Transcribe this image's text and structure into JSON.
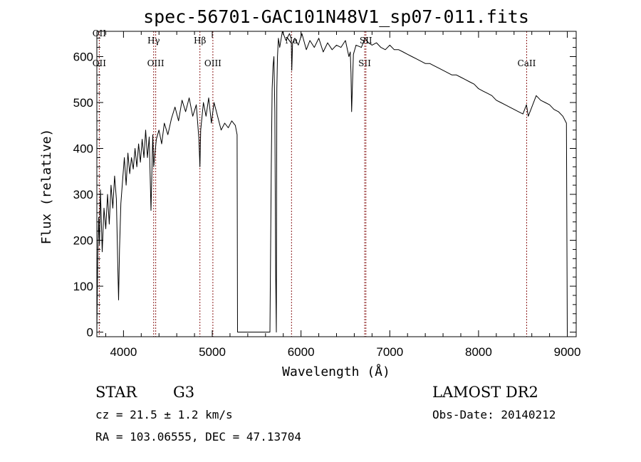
{
  "chart_data": {
    "type": "line",
    "title": "spec-56701-GAC101N48V1_sp07-011.fits",
    "xlabel": "Wavelength (Å)",
    "ylabel": "Flux (relative)",
    "xlim": [
      3700,
      9100
    ],
    "ylim": [
      -10,
      655
    ],
    "x_ticks": [
      4000,
      5000,
      6000,
      7000,
      8000,
      9000
    ],
    "x_tick_labels": [
      "4000",
      "5000",
      "6000",
      "7000",
      "8000",
      "9000"
    ],
    "y_ticks": [
      0,
      100,
      200,
      300,
      400,
      500,
      600
    ],
    "y_tick_labels": [
      "0",
      "100",
      "200",
      "300",
      "400",
      "500",
      "600"
    ],
    "grid": false,
    "series": [
      {
        "color": "#000000",
        "x": [
          3700,
          3710,
          3720,
          3730,
          3740,
          3760,
          3780,
          3800,
          3820,
          3840,
          3860,
          3880,
          3900,
          3920,
          3935,
          3945,
          3955,
          3970,
          3990,
          4010,
          4030,
          4050,
          4070,
          4090,
          4110,
          4130,
          4150,
          4170,
          4190,
          4210,
          4230,
          4250,
          4270,
          4290,
          4310,
          4330,
          4340,
          4350,
          4370,
          4400,
          4430,
          4460,
          4500,
          4540,
          4580,
          4620,
          4660,
          4700,
          4740,
          4780,
          4820,
          4850,
          4861,
          4870,
          4900,
          4930,
          4960,
          4990,
          5020,
          5060,
          5100,
          5140,
          5180,
          5220,
          5260,
          5280,
          5285,
          5290,
          5300,
          5500,
          5650,
          5665,
          5675,
          5685,
          5695,
          5705,
          5715,
          5722,
          5728,
          5735,
          5745,
          5760,
          5790,
          5830,
          5870,
          5890,
          5896,
          5905,
          5930,
          5970,
          6010,
          6060,
          6100,
          6150,
          6200,
          6250,
          6300,
          6350,
          6400,
          6450,
          6500,
          6540,
          6555,
          6563,
          6570,
          6590,
          6620,
          6680,
          6720,
          6760,
          6800,
          6850,
          6900,
          6950,
          7000,
          7050,
          7100,
          7150,
          7200,
          7250,
          7300,
          7350,
          7400,
          7450,
          7500,
          7550,
          7600,
          7650,
          7700,
          7750,
          7800,
          7850,
          7900,
          7950,
          8000,
          8050,
          8100,
          8150,
          8200,
          8250,
          8300,
          8350,
          8400,
          8450,
          8500,
          8540,
          8560,
          8600,
          8650,
          8700,
          8750,
          8800,
          8850,
          8900,
          8950,
          8990,
          9000
        ],
        "y": [
          0,
          160,
          250,
          190,
          310,
          175,
          270,
          225,
          300,
          235,
          320,
          270,
          340,
          290,
          150,
          70,
          180,
          280,
          330,
          380,
          320,
          390,
          345,
          380,
          355,
          400,
          360,
          410,
          370,
          420,
          380,
          440,
          380,
          425,
          265,
          430,
          360,
          380,
          420,
          440,
          410,
          455,
          430,
          465,
          490,
          460,
          505,
          480,
          510,
          470,
          495,
          420,
          360,
          440,
          500,
          470,
          510,
          455,
          500,
          470,
          440,
          455,
          445,
          460,
          450,
          430,
          0,
          0,
          0,
          0,
          0,
          360,
          530,
          580,
          600,
          480,
          120,
          0,
          530,
          600,
          640,
          620,
          655,
          635,
          650,
          640,
          570,
          630,
          640,
          625,
          650,
          615,
          635,
          620,
          640,
          610,
          630,
          615,
          625,
          620,
          635,
          600,
          610,
          565,
          480,
          605,
          625,
          620,
          640,
          630,
          625,
          630,
          620,
          615,
          625,
          615,
          615,
          610,
          605,
          600,
          595,
          590,
          585,
          585,
          580,
          575,
          570,
          565,
          560,
          560,
          555,
          550,
          545,
          540,
          530,
          525,
          520,
          515,
          505,
          500,
          495,
          490,
          485,
          480,
          475,
          495,
          470,
          490,
          515,
          505,
          500,
          495,
          485,
          480,
          470,
          455,
          0
        ]
      }
    ],
    "annotations": [
      {
        "x": 3727,
        "labels": [
          "OII",
          "OII"
        ]
      },
      {
        "x": 4340,
        "labels": [
          "Hγ"
        ]
      },
      {
        "x": 4363,
        "labels": [
          "OIII"
        ]
      },
      {
        "x": 4861,
        "labels": [
          "Hβ"
        ]
      },
      {
        "x": 5007,
        "labels": [
          "OIII"
        ]
      },
      {
        "x": 5893,
        "labels": [
          "Na"
        ]
      },
      {
        "x": 6717,
        "labels": [
          "SII"
        ]
      },
      {
        "x": 6731,
        "labels": [
          "SII"
        ]
      },
      {
        "x": 8542,
        "labels": [
          "CaII"
        ]
      }
    ],
    "line_color": "#8b1a1a"
  },
  "info": {
    "class": "STAR",
    "subclass": "G3",
    "survey": "LAMOST DR2",
    "cz": "cz = 21.5 ± 1.2 km/s",
    "obs_date": "Obs-Date: 20140212",
    "radec": "RA = 103.06555, DEC =  47.13704"
  }
}
